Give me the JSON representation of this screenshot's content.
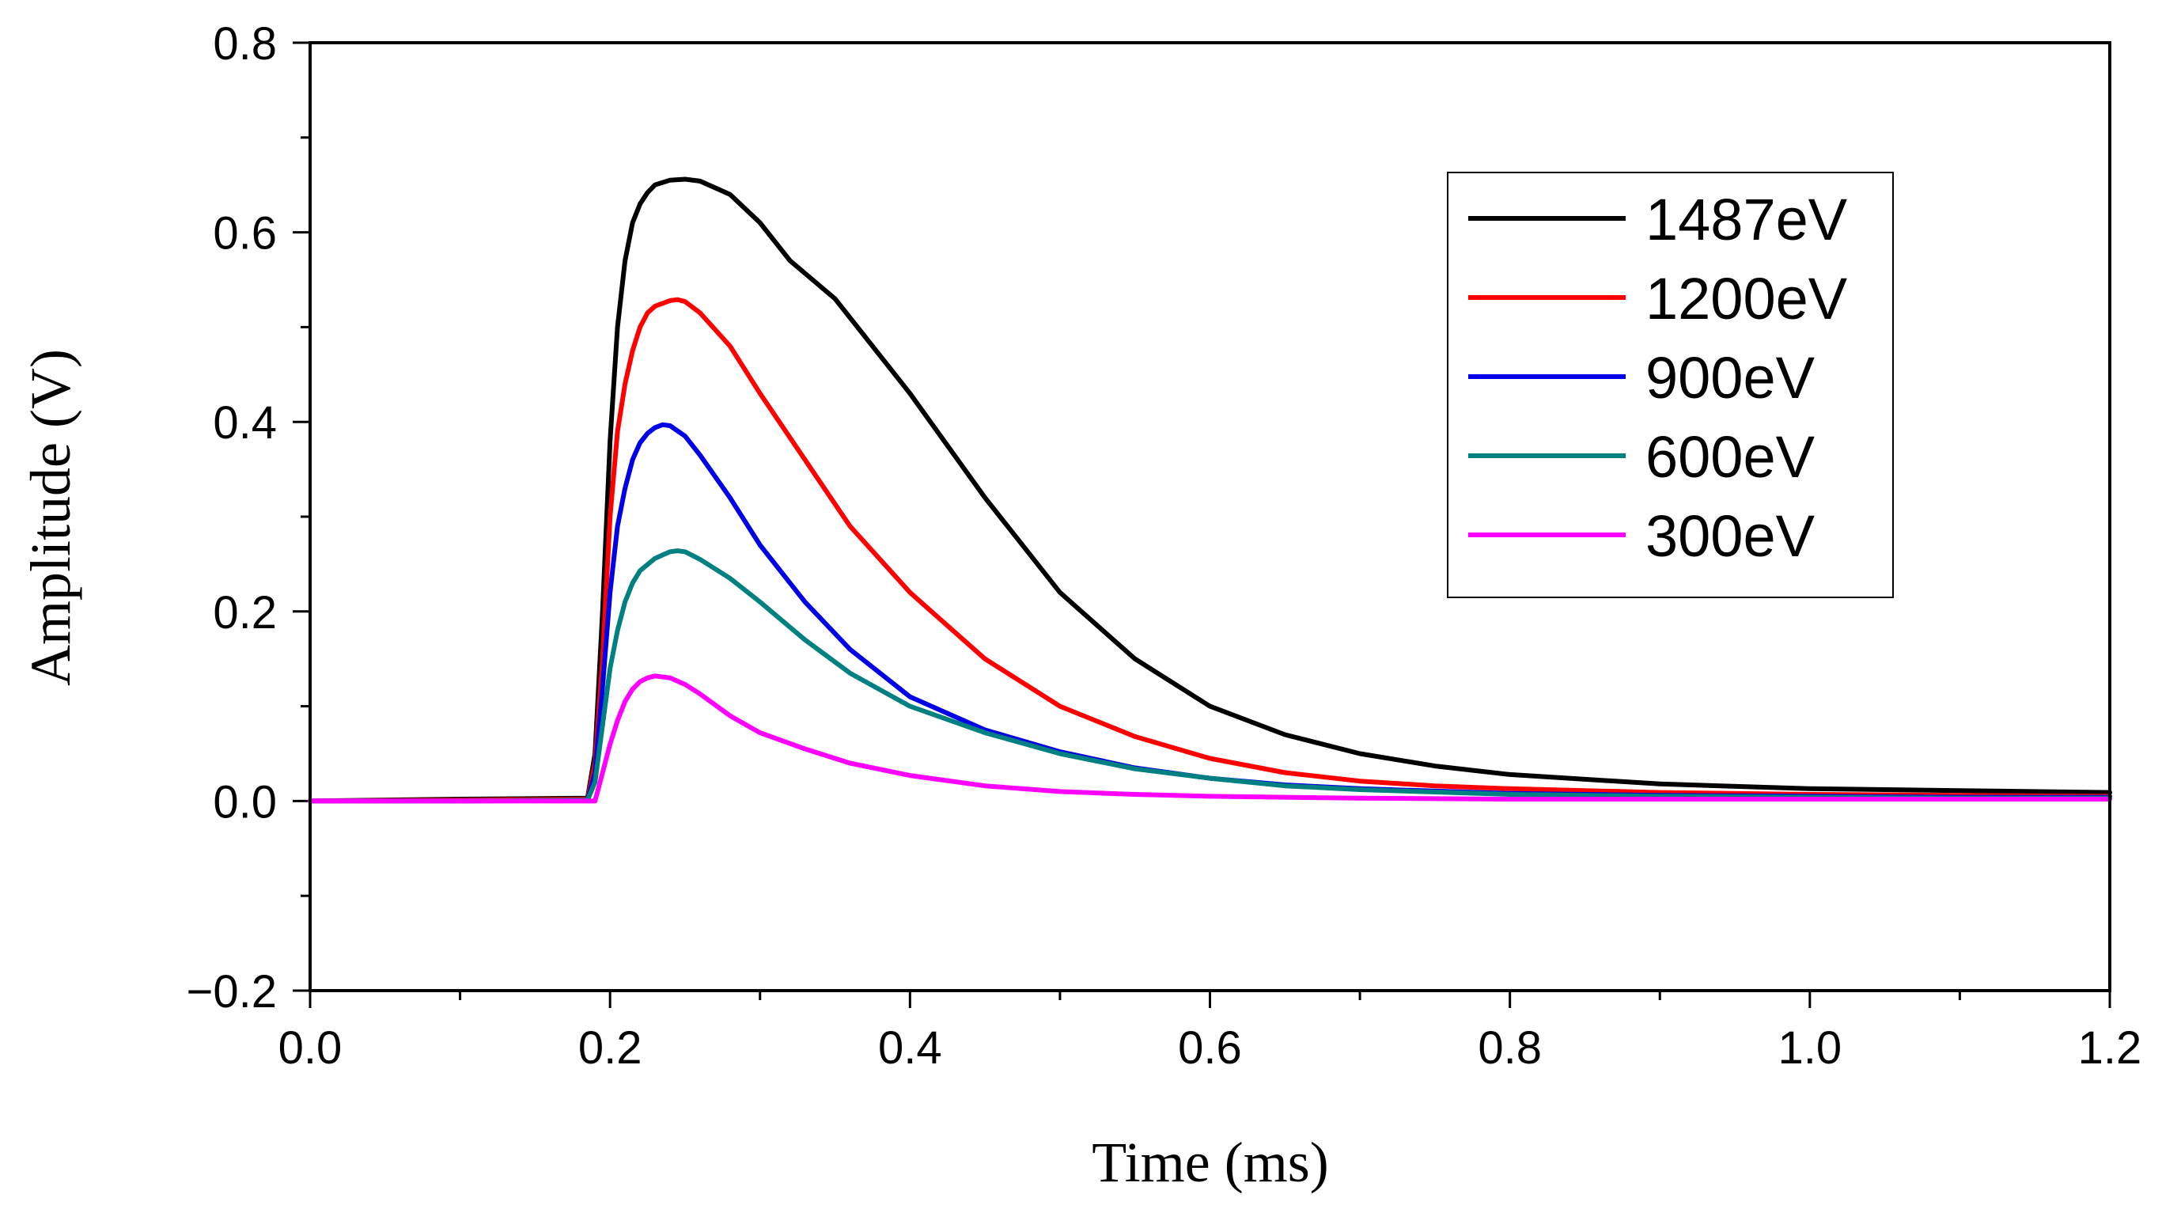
{
  "chart_data": {
    "type": "line",
    "title": "",
    "xlabel": "Time (ms)",
    "ylabel": "Amplitude (V)",
    "xlim": [
      0.0,
      1.2
    ],
    "ylim": [
      -0.2,
      0.8
    ],
    "xticks": [
      0.0,
      0.2,
      0.4,
      0.6,
      0.8,
      1.0,
      1.2
    ],
    "xtick_labels": [
      "0.0",
      "0.2",
      "0.4",
      "0.6",
      "0.8",
      "1.0",
      "1.2"
    ],
    "yticks": [
      -0.2,
      0.0,
      0.2,
      0.4,
      0.6,
      0.8
    ],
    "ytick_labels": [
      "−0.2",
      "0.0",
      "0.2",
      "0.4",
      "0.6",
      "0.8"
    ],
    "grid": false,
    "legend_position": "top-right",
    "series": [
      {
        "name": "1487eV",
        "color": "#000000",
        "x": [
          0.0,
          0.1,
          0.185,
          0.19,
          0.195,
          0.2,
          0.205,
          0.21,
          0.215,
          0.22,
          0.225,
          0.23,
          0.24,
          0.25,
          0.26,
          0.28,
          0.3,
          0.32,
          0.35,
          0.4,
          0.45,
          0.5,
          0.55,
          0.6,
          0.65,
          0.7,
          0.75,
          0.8,
          0.9,
          1.0,
          1.1,
          1.2
        ],
        "y": [
          0.0,
          0.002,
          0.003,
          0.05,
          0.2,
          0.38,
          0.5,
          0.57,
          0.61,
          0.63,
          0.642,
          0.65,
          0.655,
          0.656,
          0.654,
          0.64,
          0.61,
          0.57,
          0.53,
          0.43,
          0.32,
          0.22,
          0.15,
          0.1,
          0.07,
          0.05,
          0.037,
          0.028,
          0.018,
          0.013,
          0.011,
          0.009
        ]
      },
      {
        "name": "1200eV",
        "color": "#ff0000",
        "x": [
          0.0,
          0.1,
          0.185,
          0.19,
          0.195,
          0.2,
          0.205,
          0.21,
          0.215,
          0.22,
          0.225,
          0.23,
          0.24,
          0.245,
          0.25,
          0.26,
          0.28,
          0.3,
          0.33,
          0.36,
          0.4,
          0.45,
          0.5,
          0.55,
          0.6,
          0.65,
          0.7,
          0.75,
          0.8,
          0.9,
          1.0,
          1.1,
          1.2
        ],
        "y": [
          0.0,
          0.001,
          0.002,
          0.04,
          0.15,
          0.3,
          0.39,
          0.44,
          0.475,
          0.5,
          0.515,
          0.522,
          0.528,
          0.529,
          0.527,
          0.515,
          0.48,
          0.43,
          0.36,
          0.29,
          0.22,
          0.15,
          0.1,
          0.068,
          0.045,
          0.03,
          0.021,
          0.016,
          0.013,
          0.009,
          0.007,
          0.006,
          0.005
        ]
      },
      {
        "name": "900eV",
        "color": "#0000e6",
        "x": [
          0.0,
          0.1,
          0.185,
          0.19,
          0.195,
          0.2,
          0.205,
          0.21,
          0.215,
          0.22,
          0.225,
          0.23,
          0.235,
          0.24,
          0.25,
          0.26,
          0.28,
          0.3,
          0.33,
          0.36,
          0.4,
          0.45,
          0.5,
          0.55,
          0.6,
          0.65,
          0.7,
          0.8,
          0.9,
          1.0,
          1.1,
          1.2
        ],
        "y": [
          0.0,
          0.0,
          0.001,
          0.03,
          0.12,
          0.22,
          0.29,
          0.33,
          0.36,
          0.378,
          0.388,
          0.394,
          0.397,
          0.396,
          0.385,
          0.365,
          0.32,
          0.27,
          0.21,
          0.16,
          0.11,
          0.075,
          0.052,
          0.035,
          0.024,
          0.017,
          0.013,
          0.008,
          0.006,
          0.005,
          0.004,
          0.004
        ]
      },
      {
        "name": "600eV",
        "color": "#008080",
        "x": [
          0.0,
          0.1,
          0.185,
          0.19,
          0.195,
          0.2,
          0.205,
          0.21,
          0.215,
          0.22,
          0.23,
          0.24,
          0.245,
          0.25,
          0.26,
          0.28,
          0.3,
          0.33,
          0.36,
          0.4,
          0.45,
          0.5,
          0.55,
          0.6,
          0.65,
          0.7,
          0.8,
          0.9,
          1.0,
          1.1,
          1.2
        ],
        "y": [
          0.0,
          0.0,
          0.001,
          0.02,
          0.08,
          0.14,
          0.18,
          0.21,
          0.23,
          0.243,
          0.256,
          0.263,
          0.264,
          0.263,
          0.255,
          0.235,
          0.21,
          0.17,
          0.135,
          0.1,
          0.072,
          0.05,
          0.034,
          0.024,
          0.016,
          0.012,
          0.007,
          0.005,
          0.004,
          0.003,
          0.003
        ]
      },
      {
        "name": "300eV",
        "color": "#ff00ff",
        "x": [
          0.0,
          0.1,
          0.19,
          0.195,
          0.2,
          0.205,
          0.21,
          0.215,
          0.22,
          0.225,
          0.23,
          0.235,
          0.24,
          0.25,
          0.26,
          0.28,
          0.3,
          0.33,
          0.36,
          0.4,
          0.45,
          0.5,
          0.55,
          0.6,
          0.7,
          0.8,
          0.9,
          1.0,
          1.1,
          1.2
        ],
        "y": [
          0.0,
          0.0,
          0.0,
          0.03,
          0.06,
          0.085,
          0.105,
          0.118,
          0.126,
          0.13,
          0.132,
          0.131,
          0.13,
          0.123,
          0.113,
          0.09,
          0.072,
          0.055,
          0.04,
          0.027,
          0.016,
          0.01,
          0.007,
          0.005,
          0.003,
          0.002,
          0.002,
          0.002,
          0.002,
          0.002
        ]
      }
    ]
  }
}
